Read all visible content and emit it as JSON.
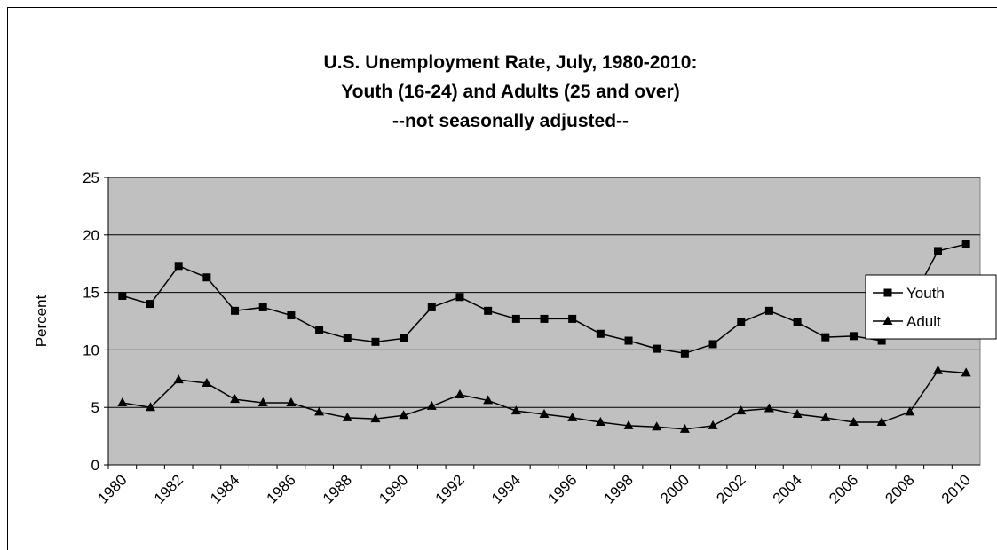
{
  "chart_data": {
    "type": "line",
    "title": [
      "U.S. Unemployment Rate, July, 1980-2010:",
      "Youth (16-24) and Adults (25 and over)",
      "--not seasonally adjusted--"
    ],
    "y_label": "Percent",
    "categories": [
      "1980",
      null,
      "1982",
      null,
      "1984",
      null,
      "1986",
      null,
      "1988",
      null,
      "1990",
      null,
      "1992",
      null,
      "1994",
      null,
      "1996",
      null,
      "1998",
      null,
      "2000",
      null,
      "2002",
      null,
      "2004",
      null,
      "2006",
      null,
      "2008",
      null,
      "2010"
    ],
    "series": [
      {
        "name": "Youth",
        "color": "#000000",
        "marker": "square",
        "values": [
          14.7,
          14.0,
          17.3,
          16.3,
          13.4,
          13.7,
          13.0,
          11.7,
          11.0,
          10.7,
          11.0,
          13.7,
          14.6,
          13.4,
          12.7,
          12.7,
          12.7,
          11.4,
          10.8,
          10.1,
          9.7,
          10.5,
          12.4,
          13.4,
          12.4,
          11.1,
          11.2,
          10.8,
          14.0,
          18.6,
          19.2
        ]
      },
      {
        "name": "Adult",
        "color": "#000000",
        "marker": "triangle",
        "values": [
          5.4,
          5.0,
          7.4,
          7.1,
          5.7,
          5.4,
          5.4,
          4.6,
          4.1,
          4.0,
          4.3,
          5.1,
          6.1,
          5.6,
          4.7,
          4.4,
          4.1,
          3.7,
          3.4,
          3.3,
          3.1,
          3.4,
          4.7,
          4.9,
          4.4,
          4.1,
          3.7,
          3.7,
          4.6,
          8.2,
          8.0
        ]
      }
    ],
    "ylim": [
      0,
      25
    ],
    "yticks": [
      0,
      5,
      10,
      15,
      20,
      25
    ],
    "grid": true,
    "plot_background": "#c0c0c0",
    "legend": "right"
  }
}
